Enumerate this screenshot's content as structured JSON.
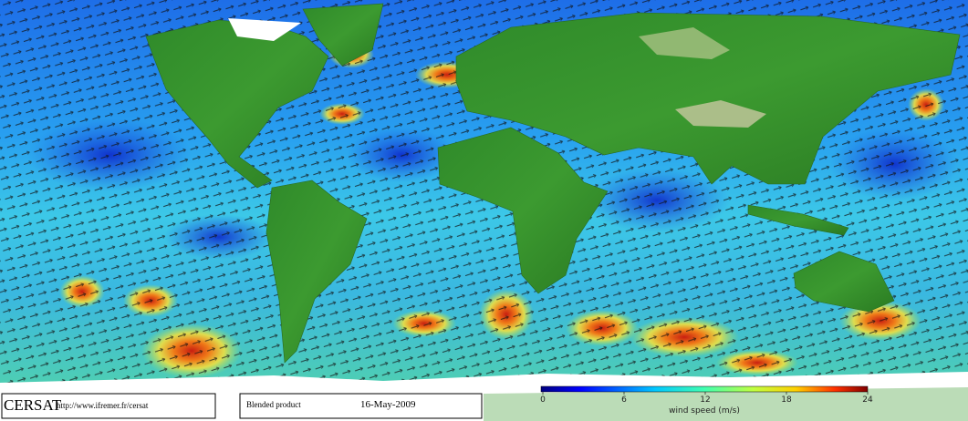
{
  "footer": {
    "brand": "CERSAT",
    "url": "http://www.ifremer.fr/cersat",
    "product": "Blended product",
    "date": "16-May-2009"
  },
  "colorbar": {
    "label": "wind speed (m/s)",
    "lim": [
      0,
      24
    ],
    "ticks": [
      0,
      6,
      12,
      18,
      24
    ]
  }
}
